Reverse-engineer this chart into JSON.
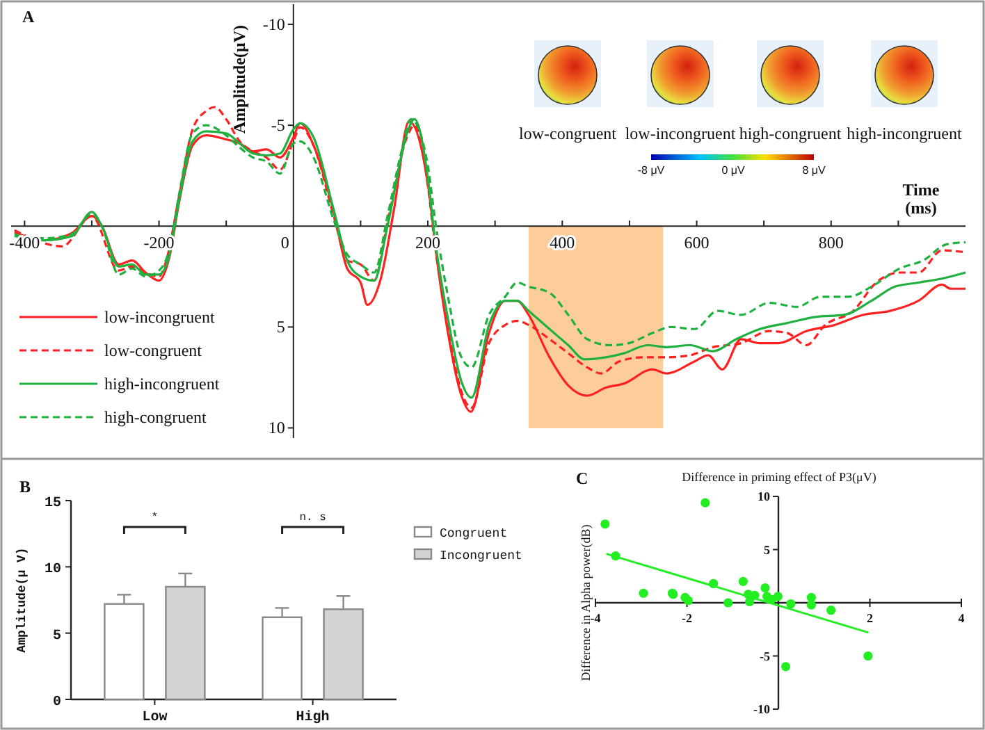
{
  "chart_data": [
    {
      "type": "line",
      "xlabel": "Time (ms)",
      "ylabel": "Amplitude(μV)",
      "annotations": [
        "A",
        "low-congruent",
        "low-incongruent",
        "high-congruent",
        "high-incongruent",
        "-8 μV",
        "0 μV",
        "8 μV"
      ],
      "xlim": [
        -420,
        1000
      ],
      "ylim": [
        10.5,
        -11
      ],
      "xticks": [
        -400,
        {
          "value": -300,
          "label": null
        },
        -200,
        {
          "value": -100,
          "label": null
        },
        0,
        {
          "value": 100,
          "label": null
        },
        200,
        {
          "value": 300,
          "label": null
        },
        400,
        {
          "value": 500,
          "label": null
        },
        600,
        {
          "value": 700,
          "label": null
        },
        800,
        {
          "value": 900,
          "label": null
        }
      ],
      "yticks": [
        -10,
        -5,
        5,
        10
      ],
      "bands": [
        {
          "axis": "x",
          "from": 350,
          "to": 550,
          "color": "#fbc48a"
        }
      ],
      "legend": "bottom left",
      "series": [
        {
          "name": "low-incongruent",
          "color": "#ff2020",
          "line_style": "solid",
          "x": [
            -415,
            -370,
            -330,
            -300,
            -285,
            -260,
            -240,
            -220,
            -200,
            -185,
            -170,
            -150,
            -130,
            -100,
            -80,
            -60,
            -40,
            -20,
            0,
            10,
            30,
            60,
            80,
            100,
            110,
            130,
            150,
            172,
            200,
            215,
            230,
            250,
            264,
            291,
            315,
            333,
            350,
            381,
            409,
            437,
            465,
            492,
            534,
            555,
            597,
            617,
            638,
            666,
            694,
            722,
            763,
            805,
            847,
            888,
            930,
            965,
            978,
            1000
          ],
          "values": [
            0.3,
            0.7,
            0.35,
            -0.5,
            0,
            1.9,
            1.7,
            2.3,
            2.7,
            1.6,
            -1.2,
            -4.0,
            -4.5,
            -4.3,
            -4.1,
            -3.7,
            -3.8,
            -3.4,
            -4.4,
            -5.1,
            -4.0,
            -0.7,
            2.1,
            2.8,
            3.9,
            2.6,
            -0.9,
            -5.2,
            -2.1,
            2.0,
            5.3,
            8.4,
            9.2,
            5.3,
            3.7,
            3.7,
            4.4,
            6.5,
            7.9,
            8.4,
            8.0,
            7.8,
            7.1,
            7.3,
            6.7,
            6.4,
            7.1,
            5.6,
            5.8,
            5.8,
            5.2,
            4.9,
            4.4,
            4.2,
            3.7,
            2.9,
            3.1,
            3.1
          ]
        },
        {
          "name": "low-congruent",
          "color": "#ff2020",
          "line_style": "dashed",
          "x": [
            -415,
            -344,
            -300,
            -260,
            -240,
            -220,
            -200,
            -190,
            -170,
            -150,
            -130,
            -117,
            -100,
            -80,
            -60,
            -40,
            -20,
            0,
            10,
            30,
            60,
            80,
            100,
            120,
            140,
            170,
            180,
            200,
            210,
            230,
            250,
            265,
            291,
            315,
            333,
            350,
            381,
            409,
            437,
            458,
            485,
            520,
            555,
            590,
            624,
            666,
            708,
            735,
            763,
            791,
            833,
            867,
            902,
            930,
            965,
            1000
          ],
          "values": [
            0.2,
            1.0,
            -0.5,
            2.2,
            2.0,
            2.3,
            2.5,
            1.8,
            -1.5,
            -4.8,
            -5.7,
            -5.9,
            -5.3,
            -4.2,
            -3.7,
            -3.4,
            -2.8,
            -4.2,
            -4.9,
            -4.0,
            -0.5,
            1.7,
            1.9,
            2.7,
            -0.2,
            -4.5,
            -5.0,
            -2.0,
            0.8,
            5.0,
            8.2,
            9.0,
            5.8,
            4.9,
            4.7,
            4.9,
            5.6,
            6.3,
            7.0,
            7.3,
            6.7,
            6.5,
            6.5,
            6.4,
            6.0,
            5.8,
            5.2,
            5.3,
            5.9,
            4.9,
            4.2,
            2.8,
            2.3,
            2.3,
            1.2,
            1.3
          ]
        },
        {
          "name": "high-incongruent",
          "color": "#20b040",
          "line_style": "solid",
          "x": [
            -415,
            -370,
            -330,
            -300,
            -285,
            -260,
            -240,
            -220,
            -200,
            -185,
            -170,
            -150,
            -130,
            -100,
            -80,
            -60,
            -40,
            -20,
            0,
            10,
            30,
            60,
            80,
            100,
            120,
            140,
            170,
            180,
            200,
            210,
            230,
            250,
            265,
            291,
            315,
            333,
            350,
            381,
            409,
            433,
            465,
            492,
            527,
            555,
            590,
            624,
            659,
            694,
            735,
            777,
            819,
            860,
            895,
            930,
            965,
            1000
          ],
          "values": [
            0.4,
            0.7,
            0.5,
            -0.7,
            0,
            2.0,
            1.9,
            2.4,
            2.4,
            1.5,
            -1.3,
            -4.2,
            -4.7,
            -4.6,
            -4.1,
            -3.6,
            -3.5,
            -3.6,
            -4.8,
            -5.1,
            -4.4,
            -0.8,
            1.7,
            2.5,
            2.7,
            0.0,
            -4.7,
            -5.3,
            -2.4,
            0.5,
            4.6,
            7.7,
            8.5,
            4.9,
            3.7,
            3.7,
            4.2,
            5.1,
            5.9,
            6.6,
            6.5,
            6.3,
            5.9,
            6.0,
            5.9,
            6.2,
            5.6,
            5.1,
            4.8,
            4.5,
            4.4,
            3.7,
            3.0,
            2.8,
            2.6,
            2.3
          ]
        },
        {
          "name": "high-congruent",
          "color": "#20b040",
          "line_style": "dashed",
          "x": [
            -415,
            -370,
            -330,
            -300,
            -285,
            -260,
            -240,
            -220,
            -200,
            -185,
            -170,
            -150,
            -130,
            -100,
            -80,
            -60,
            -40,
            -20,
            0,
            10,
            30,
            60,
            80,
            100,
            120,
            140,
            160,
            175,
            200,
            210,
            230,
            250,
            265,
            291,
            315,
            333,
            350,
            381,
            409,
            437,
            471,
            499,
            534,
            562,
            597,
            631,
            666,
            708,
            749,
            784,
            826,
            860,
            902,
            937,
            972,
            1000
          ],
          "values": [
            0.5,
            0.6,
            0.4,
            -0.6,
            0,
            2.4,
            2.1,
            2.5,
            2.2,
            1.2,
            -1.6,
            -4.6,
            -5.0,
            -4.5,
            -3.9,
            -3.4,
            -3.2,
            -2.6,
            -4.1,
            -4.2,
            -3.4,
            -0.3,
            1.4,
            1.9,
            2.3,
            -0.5,
            -3.6,
            -5.3,
            -3.0,
            -0.5,
            3.5,
            6.5,
            7.0,
            4.4,
            3.5,
            2.8,
            3.0,
            3.3,
            4.4,
            5.6,
            5.9,
            5.8,
            5.3,
            5.0,
            5.1,
            4.2,
            4.4,
            3.8,
            4.0,
            3.5,
            3.5,
            3.0,
            2.1,
            1.7,
            0.9,
            0.8
          ]
        }
      ]
    },
    {
      "type": "bar",
      "ylabel": "Amplitude(μ V)",
      "categories": [
        "Low",
        "High"
      ],
      "annotations": [
        "B",
        "*",
        "n. s"
      ],
      "ylim": [
        0,
        15
      ],
      "yticks": [
        0,
        5,
        10,
        15
      ],
      "legend": "right",
      "series": [
        {
          "name": "Congruent",
          "color": "#ffffff",
          "values": [
            7.2,
            6.2
          ],
          "errors": [
            [
              7.2,
              7.9
            ],
            [
              6.2,
              6.9
            ]
          ]
        },
        {
          "name": "Incongruent",
          "color": "#d4d4d4",
          "values": [
            8.5,
            6.8
          ],
          "errors": [
            [
              8.5,
              9.5
            ],
            [
              6.8,
              7.8
            ]
          ]
        }
      ]
    },
    {
      "type": "scatter",
      "title": "Difference in priming effect of P3(μV)",
      "ylabel": "Difference in Alpha power(dB)",
      "annotations": [
        "C"
      ],
      "xlim": [
        -4,
        4
      ],
      "xticks": [
        -4,
        -2,
        2,
        4
      ],
      "ylim": [
        -10,
        10
      ],
      "yticks": [
        -10,
        -5,
        5,
        10
      ],
      "series": [
        {
          "type": "scatter",
          "marker": "circle",
          "color": "#22ee22",
          "x": [
            -3.79,
            -3.56,
            -2.95,
            -2.32,
            -2.3,
            -2.04,
            -1.97,
            -1.6,
            -1.42,
            -1.1,
            -0.77,
            -0.66,
            -0.63,
            -0.52,
            -0.29,
            -0.25,
            -0.15,
            -0.01,
            0.16,
            0.27,
            0.72,
            0.72,
            1.15,
            1.96
          ],
          "values": [
            7.4,
            4.4,
            0.9,
            0.9,
            0.8,
            0.5,
            0.2,
            9.4,
            1.8,
            0.0,
            2.0,
            0.8,
            0.1,
            0.7,
            1.4,
            0.6,
            0.3,
            0.6,
            -6.0,
            -0.1,
            0.5,
            -0.2,
            -0.7,
            -5.0
          ]
        },
        {
          "type": "line",
          "color": "#22ee22",
          "x": [
            -3.76,
            1.97
          ],
          "values": [
            4.6,
            -2.8
          ]
        }
      ]
    }
  ]
}
